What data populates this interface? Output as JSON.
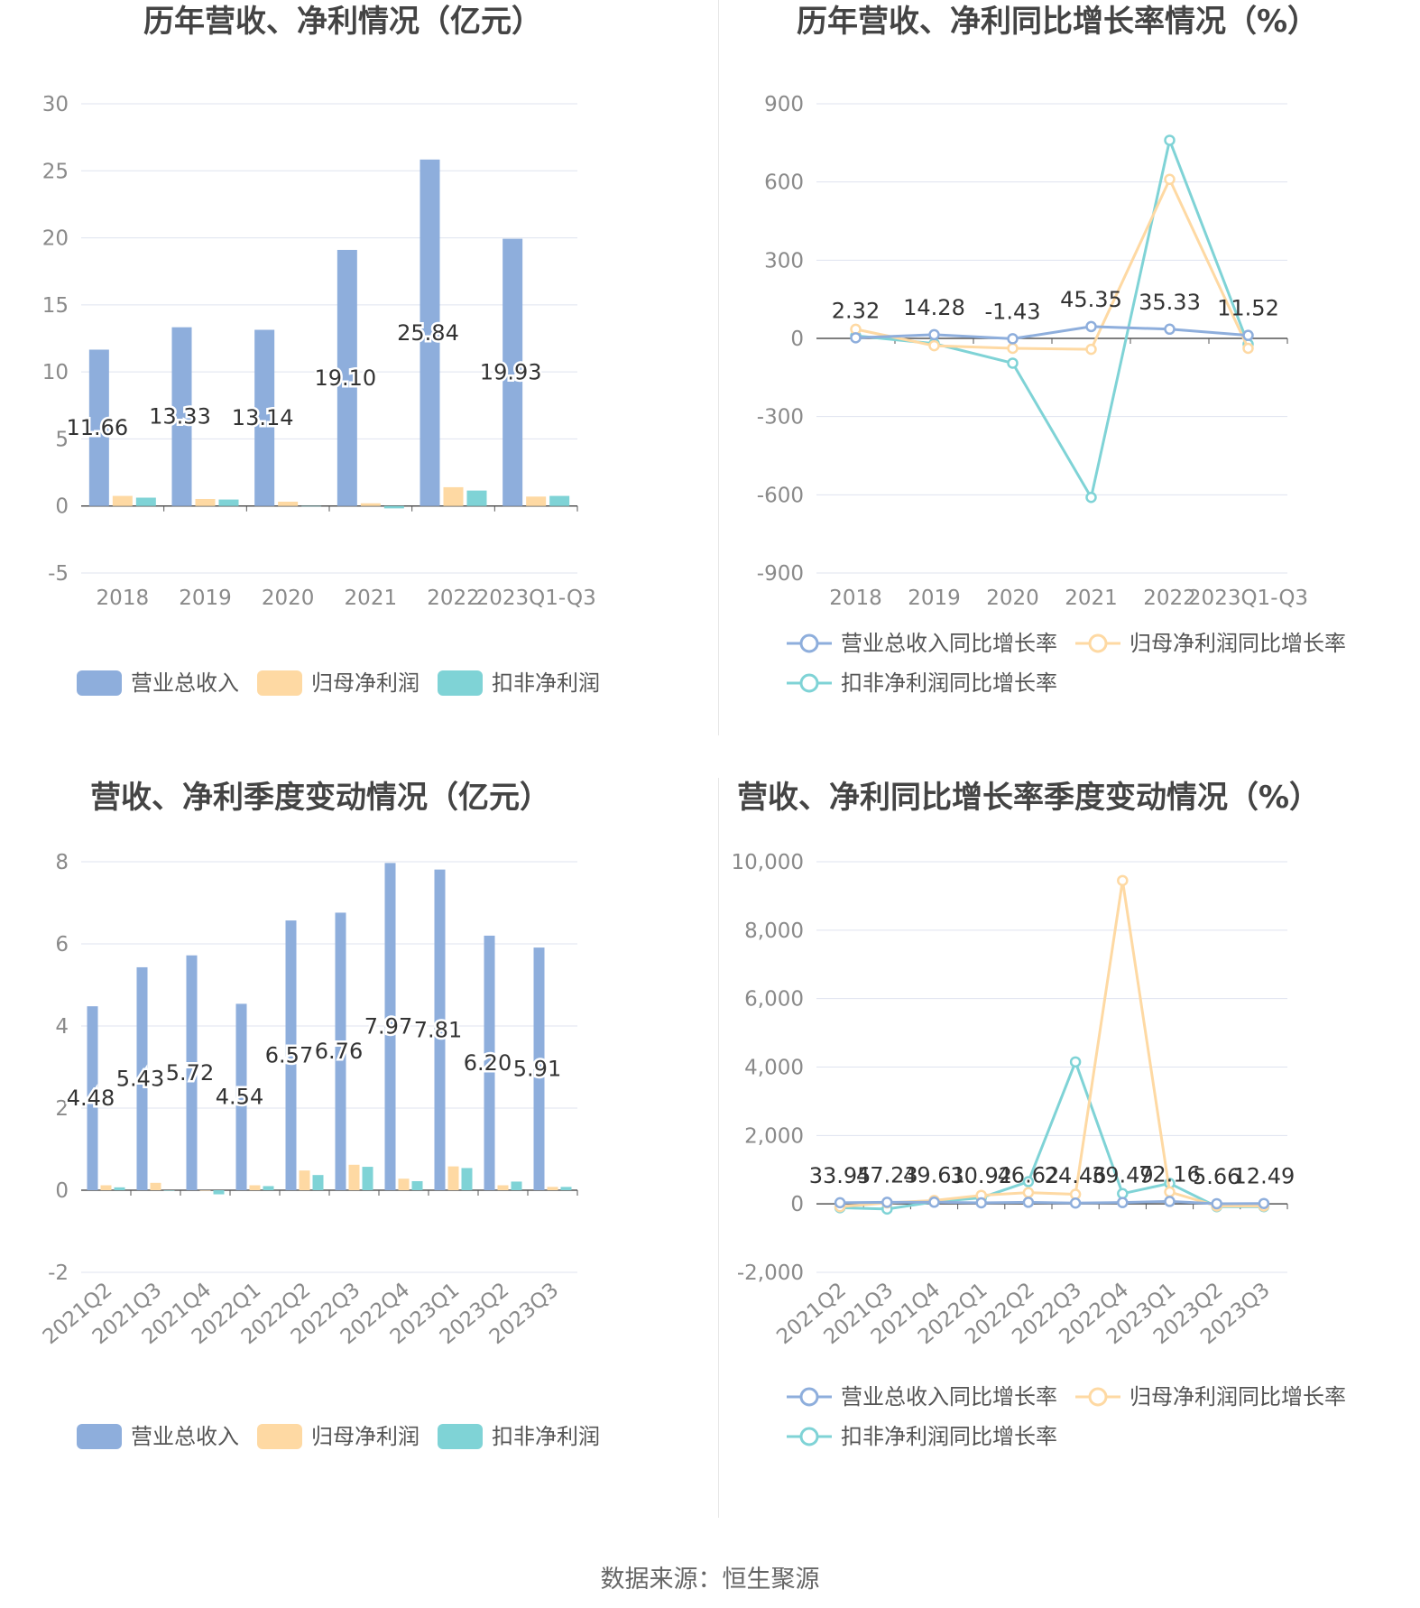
{
  "colors": {
    "revenue": "#8eaedc",
    "net_profit": "#fed9a3",
    "deducted_profit": "#7fd3d6",
    "grid": "#dfe3ef",
    "axis": "#555555"
  },
  "source": "数据来源：恒生聚源",
  "chart_data": [
    {
      "type": "bar",
      "title": "历年营收、净利情况（亿元）",
      "categories": [
        "2018",
        "2019",
        "2020",
        "2021",
        "2022",
        "2023Q1-Q3"
      ],
      "ylim": [
        -5,
        30
      ],
      "yticks": [
        30,
        25,
        20,
        15,
        10,
        5,
        0,
        -5
      ],
      "series": [
        {
          "name": "营业总收入",
          "values": [
            11.66,
            13.33,
            13.14,
            19.1,
            25.84,
            19.93
          ],
          "labels": [
            "11.66",
            "13.33",
            "13.14",
            "19.10",
            "25.84",
            "19.93"
          ]
        },
        {
          "name": "归母净利润",
          "values": [
            0.75,
            0.52,
            0.32,
            0.2,
            1.4,
            0.7
          ]
        },
        {
          "name": "扣非净利润",
          "values": [
            0.62,
            0.48,
            0.0,
            -0.18,
            1.15,
            0.75
          ]
        }
      ],
      "grid": true,
      "legend": "bottom"
    },
    {
      "type": "line",
      "title": "历年营收、净利同比增长率情况（%）",
      "categories": [
        "2018",
        "2019",
        "2020",
        "2021",
        "2022",
        "2023Q1-Q3"
      ],
      "ylim": [
        -900,
        900
      ],
      "yticks": [
        900,
        600,
        300,
        0,
        -300,
        -600,
        -900
      ],
      "series": [
        {
          "name": "营业总收入同比增长率",
          "values": [
            2.32,
            14.28,
            -1.43,
            45.35,
            35.33,
            11.52
          ],
          "labels": [
            "2.32",
            "14.28",
            "-1.43",
            "45.35",
            "35.33",
            "11.52"
          ]
        },
        {
          "name": "归母净利润同比增长率",
          "values": [
            35,
            -28,
            -38,
            -42,
            610,
            -38
          ]
        },
        {
          "name": "扣非净利润同比增长率",
          "values": [
            10,
            -20,
            -95,
            -610,
            760,
            -22
          ]
        }
      ],
      "grid": true,
      "legend": "bottom"
    },
    {
      "type": "bar",
      "title": "营收、净利季度变动情况（亿元）",
      "categories": [
        "2021Q2",
        "2021Q3",
        "2021Q4",
        "2022Q1",
        "2022Q2",
        "2022Q3",
        "2022Q4",
        "2023Q1",
        "2023Q2",
        "2023Q3"
      ],
      "ylim": [
        -2,
        8
      ],
      "yticks": [
        8,
        6,
        4,
        2,
        0,
        -2
      ],
      "series": [
        {
          "name": "营业总收入",
          "values": [
            4.48,
            5.43,
            5.72,
            4.54,
            6.57,
            6.76,
            7.97,
            7.81,
            6.2,
            5.91
          ],
          "labels": [
            "4.48",
            "5.43",
            "5.72",
            "4.54",
            "6.57",
            "6.76",
            "7.97",
            "7.81",
            "6.20",
            "5.91"
          ]
        },
        {
          "name": "归母净利润",
          "values": [
            0.12,
            0.18,
            0.0,
            0.12,
            0.48,
            0.62,
            0.28,
            0.58,
            0.12,
            0.08
          ]
        },
        {
          "name": "扣非净利润",
          "values": [
            0.07,
            0.0,
            -0.1,
            0.1,
            0.37,
            0.57,
            0.22,
            0.54,
            0.21,
            0.08
          ]
        }
      ],
      "grid": true,
      "legend": "bottom"
    },
    {
      "type": "line",
      "title": "营收、净利同比增长率季度变动情况（%）",
      "categories": [
        "2021Q2",
        "2021Q3",
        "2021Q4",
        "2022Q1",
        "2022Q2",
        "2022Q3",
        "2022Q4",
        "2023Q1",
        "2023Q2",
        "2023Q3"
      ],
      "ylim": [
        -2000,
        10000
      ],
      "yticks": [
        10000,
        8000,
        6000,
        4000,
        2000,
        0,
        -2000
      ],
      "ytick_labels": [
        "10,000",
        "8,000",
        "6,000",
        "4,000",
        "2,000",
        "0",
        "-2,000"
      ],
      "series": [
        {
          "name": "营业总收入同比增长率",
          "values": [
            33.95,
            47.23,
            49.61,
            30.92,
            46.62,
            24.46,
            39.49,
            72.16,
            5.66,
            12.49
          ],
          "labels": [
            "33.95",
            "47.23",
            "49.61",
            "30.92",
            "46.62",
            "24.46",
            "39.49",
            "72.16",
            "5.66",
            "12.49"
          ]
        },
        {
          "name": "归母净利润同比增长率",
          "values": [
            -80,
            30,
            100,
            250,
            330,
            280,
            9450,
            350,
            -60,
            -60
          ]
        },
        {
          "name": "扣非净利润同比增长率",
          "values": [
            -110,
            -150,
            60,
            180,
            650,
            4150,
            300,
            600,
            -80,
            -80
          ]
        }
      ],
      "grid": true,
      "legend": "bottom"
    }
  ]
}
